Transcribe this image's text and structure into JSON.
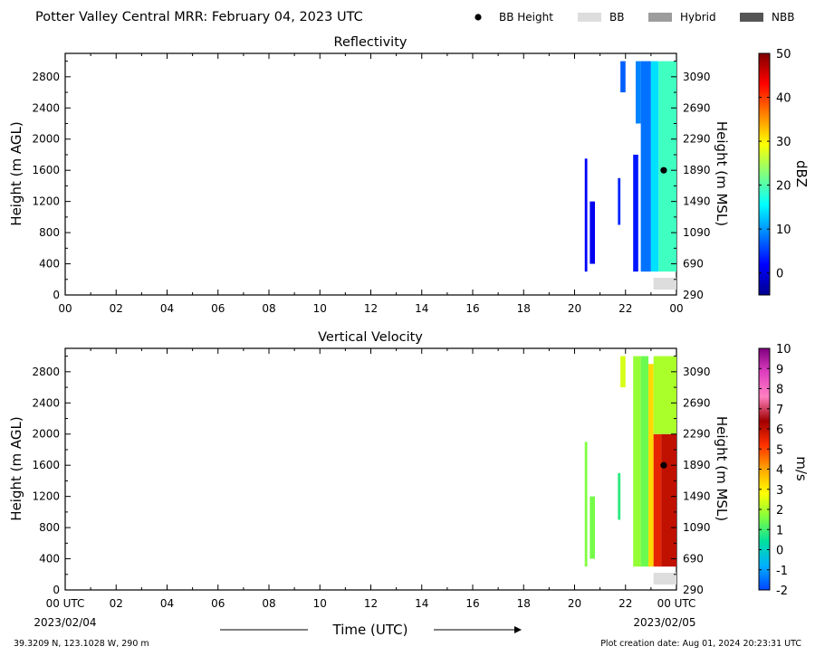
{
  "header": {
    "title": "Potter Valley Central MRR:  February 04, 2023 UTC",
    "legend": [
      {
        "label": "BB Height",
        "symbol": "dot",
        "color": "#000000"
      },
      {
        "label": "BB",
        "symbol": "box",
        "color": "#dddddd"
      },
      {
        "label": "Hybrid",
        "symbol": "box",
        "color": "#9c9c9c"
      },
      {
        "label": "NBB",
        "symbol": "box",
        "color": "#555555"
      }
    ]
  },
  "chart_data": [
    {
      "type": "heatmap",
      "title": "Reflectivity",
      "ylabel": "Height (m AGL)",
      "y2label": "Height (m MSL)",
      "x_ticks": [
        "00",
        "02",
        "04",
        "06",
        "08",
        "10",
        "12",
        "14",
        "16",
        "18",
        "20",
        "22",
        "00"
      ],
      "y_ticks": [
        "0",
        "400",
        "800",
        "1200",
        "1600",
        "2000",
        "2400",
        "2800"
      ],
      "y2_ticks": [
        "290",
        "690",
        "1090",
        "1490",
        "1890",
        "2290",
        "2690",
        "3090"
      ],
      "xlim_hours": [
        0,
        24
      ],
      "ylim": [
        0,
        3100
      ],
      "colorbar": {
        "label": "dBZ",
        "range": [
          -5,
          50
        ],
        "ticks": [
          "0",
          "10",
          "20",
          "30",
          "40",
          "50"
        ],
        "stops": [
          "#00008f",
          "#0000ff",
          "#0080ff",
          "#00ffff",
          "#80ff80",
          "#ffff00",
          "#ff8000",
          "#ff0000",
          "#800000"
        ]
      },
      "bright_band_height": {
        "hour": 23.5,
        "height": 1600
      },
      "bb_type_bar": {
        "start_hour": 23.1,
        "end_hour": 24.0,
        "type": "BB"
      },
      "echoes": [
        {
          "start": 20.4,
          "end": 20.5,
          "bottom": 300,
          "top": 1750,
          "value": 2
        },
        {
          "start": 20.6,
          "end": 20.8,
          "bottom": 400,
          "top": 1200,
          "value": 1
        },
        {
          "start": 21.7,
          "end": 21.8,
          "bottom": 900,
          "top": 1500,
          "value": 4
        },
        {
          "start": 21.8,
          "end": 22.0,
          "bottom": 2600,
          "top": 3000,
          "value": 7
        },
        {
          "start": 22.3,
          "end": 22.5,
          "bottom": 300,
          "top": 1800,
          "value": 3
        },
        {
          "start": 22.4,
          "end": 22.6,
          "bottom": 2200,
          "top": 3000,
          "value": 9
        },
        {
          "start": 22.6,
          "end": 23.0,
          "bottom": 300,
          "top": 3000,
          "value": 8
        },
        {
          "start": 23.0,
          "end": 23.3,
          "bottom": 300,
          "top": 3000,
          "value": 14
        },
        {
          "start": 23.3,
          "end": 24.0,
          "bottom": 300,
          "top": 3000,
          "value": 19
        }
      ]
    },
    {
      "type": "heatmap",
      "title": "Vertical Velocity",
      "ylabel": "Height (m AGL)",
      "y2label": "Height (m MSL)",
      "x_ticks": [
        "00 UTC",
        "02",
        "04",
        "06",
        "08",
        "10",
        "12",
        "14",
        "16",
        "18",
        "20",
        "22",
        "00 UTC"
      ],
      "x_sub": [
        "2023/02/04",
        "2023/02/05"
      ],
      "xlabel": "Time (UTC)",
      "y_ticks": [
        "0",
        "400",
        "800",
        "1200",
        "1600",
        "2000",
        "2400",
        "2800"
      ],
      "y2_ticks": [
        "290",
        "690",
        "1090",
        "1490",
        "1890",
        "2290",
        "2690",
        "3090"
      ],
      "xlim_hours": [
        0,
        24
      ],
      "ylim": [
        0,
        3100
      ],
      "colorbar": {
        "label": "m/s",
        "range": [
          -2,
          10
        ],
        "ticks": [
          "-2",
          "-1",
          "0",
          "1",
          "2",
          "3",
          "4",
          "5",
          "6",
          "7",
          "8",
          "9",
          "10"
        ],
        "stops": [
          "#0044ff",
          "#00b0ff",
          "#00e0a0",
          "#80ff40",
          "#ffff00",
          "#ffa500",
          "#ff3000",
          "#a00000",
          "#ff80c0",
          "#e040c0",
          "#800080"
        ]
      },
      "bright_band_height": {
        "hour": 23.5,
        "height": 1600
      },
      "bb_type_bar": {
        "start_hour": 23.1,
        "end_hour": 24.0,
        "type": "BB"
      },
      "echoes": [
        {
          "start": 20.4,
          "end": 20.5,
          "bottom": 300,
          "top": 1900,
          "value": 1.6
        },
        {
          "start": 20.6,
          "end": 20.8,
          "bottom": 400,
          "top": 1200,
          "value": 1.5
        },
        {
          "start": 21.7,
          "end": 21.8,
          "bottom": 900,
          "top": 1500,
          "value": 0.8
        },
        {
          "start": 21.8,
          "end": 22.0,
          "bottom": 2600,
          "top": 3000,
          "value": 2.4
        },
        {
          "start": 22.3,
          "end": 22.6,
          "bottom": 300,
          "top": 3000,
          "value": 1.8
        },
        {
          "start": 22.6,
          "end": 22.9,
          "bottom": 300,
          "top": 3000,
          "value": 1.4
        },
        {
          "start": 22.9,
          "end": 23.1,
          "bottom": 300,
          "top": 2900,
          "value": 3.3
        },
        {
          "start": 23.1,
          "end": 23.4,
          "bottom": 300,
          "top": 2000,
          "value": 5.5
        },
        {
          "start": 23.4,
          "end": 24.0,
          "bottom": 300,
          "top": 2000,
          "value": 6.0
        },
        {
          "start": 23.1,
          "end": 24.0,
          "bottom": 2000,
          "top": 3000,
          "value": 2.0
        }
      ]
    }
  ],
  "footer": {
    "location": "39.3209 N, 123.1028 W, 290 m",
    "created": "Plot creation date: Aug 01, 2024 20:23:31 UTC"
  }
}
